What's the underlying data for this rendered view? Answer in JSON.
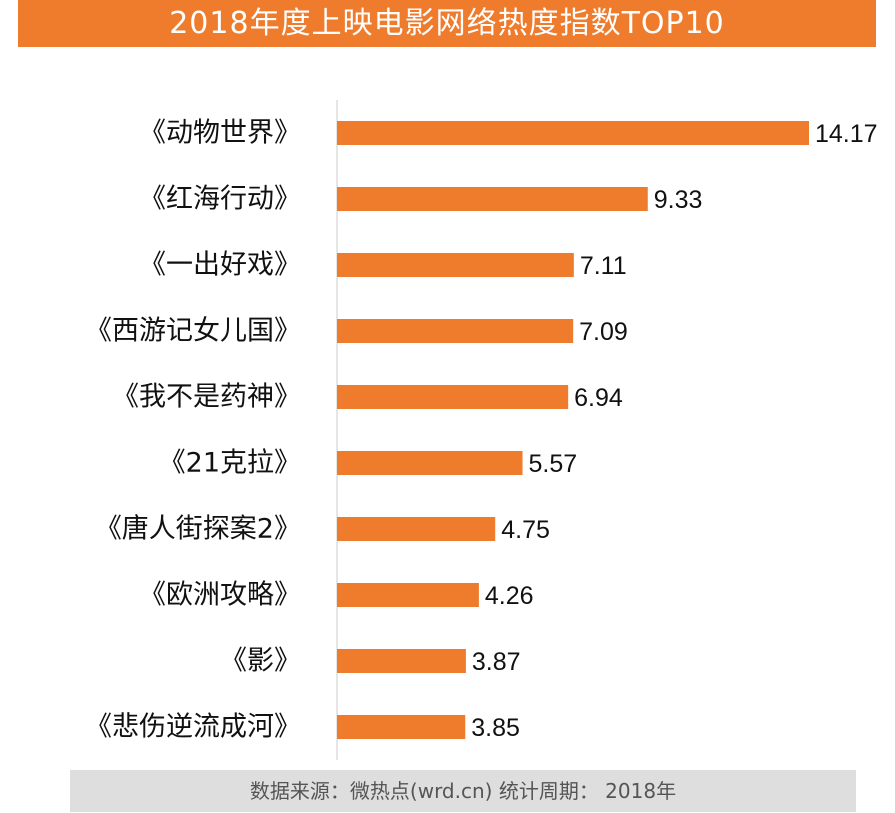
{
  "chart_data": {
    "type": "bar",
    "orientation": "horizontal",
    "title": "2018年度上映电影网络热度指数TOP10",
    "categories": [
      "《动物世界》",
      "《红海行动》",
      "《一出好戏》",
      "《西游记女儿国》",
      "《我不是药神》",
      "《21克拉》",
      "《唐人街探案2》",
      "《欧洲攻略》",
      "《影》",
      "《悲伤逆流成河》"
    ],
    "values": [
      14.17,
      9.33,
      7.11,
      7.09,
      6.94,
      5.57,
      4.75,
      4.26,
      3.87,
      3.85
    ],
    "value_labels": [
      "14.17",
      "9.33",
      "7.11",
      "7.09",
      "6.94",
      "5.57",
      "4.75",
      "4.26",
      "3.87",
      "3.85"
    ],
    "xlim": [
      0,
      14.17
    ],
    "grid": false,
    "bar_color": "#ef7b2c"
  },
  "footer": {
    "source": "数据来源：微热点(wrd.cn)  统计周期：  2018年"
  },
  "colors": {
    "accent": "#ef7b2c",
    "footer_bg": "#dedede"
  }
}
